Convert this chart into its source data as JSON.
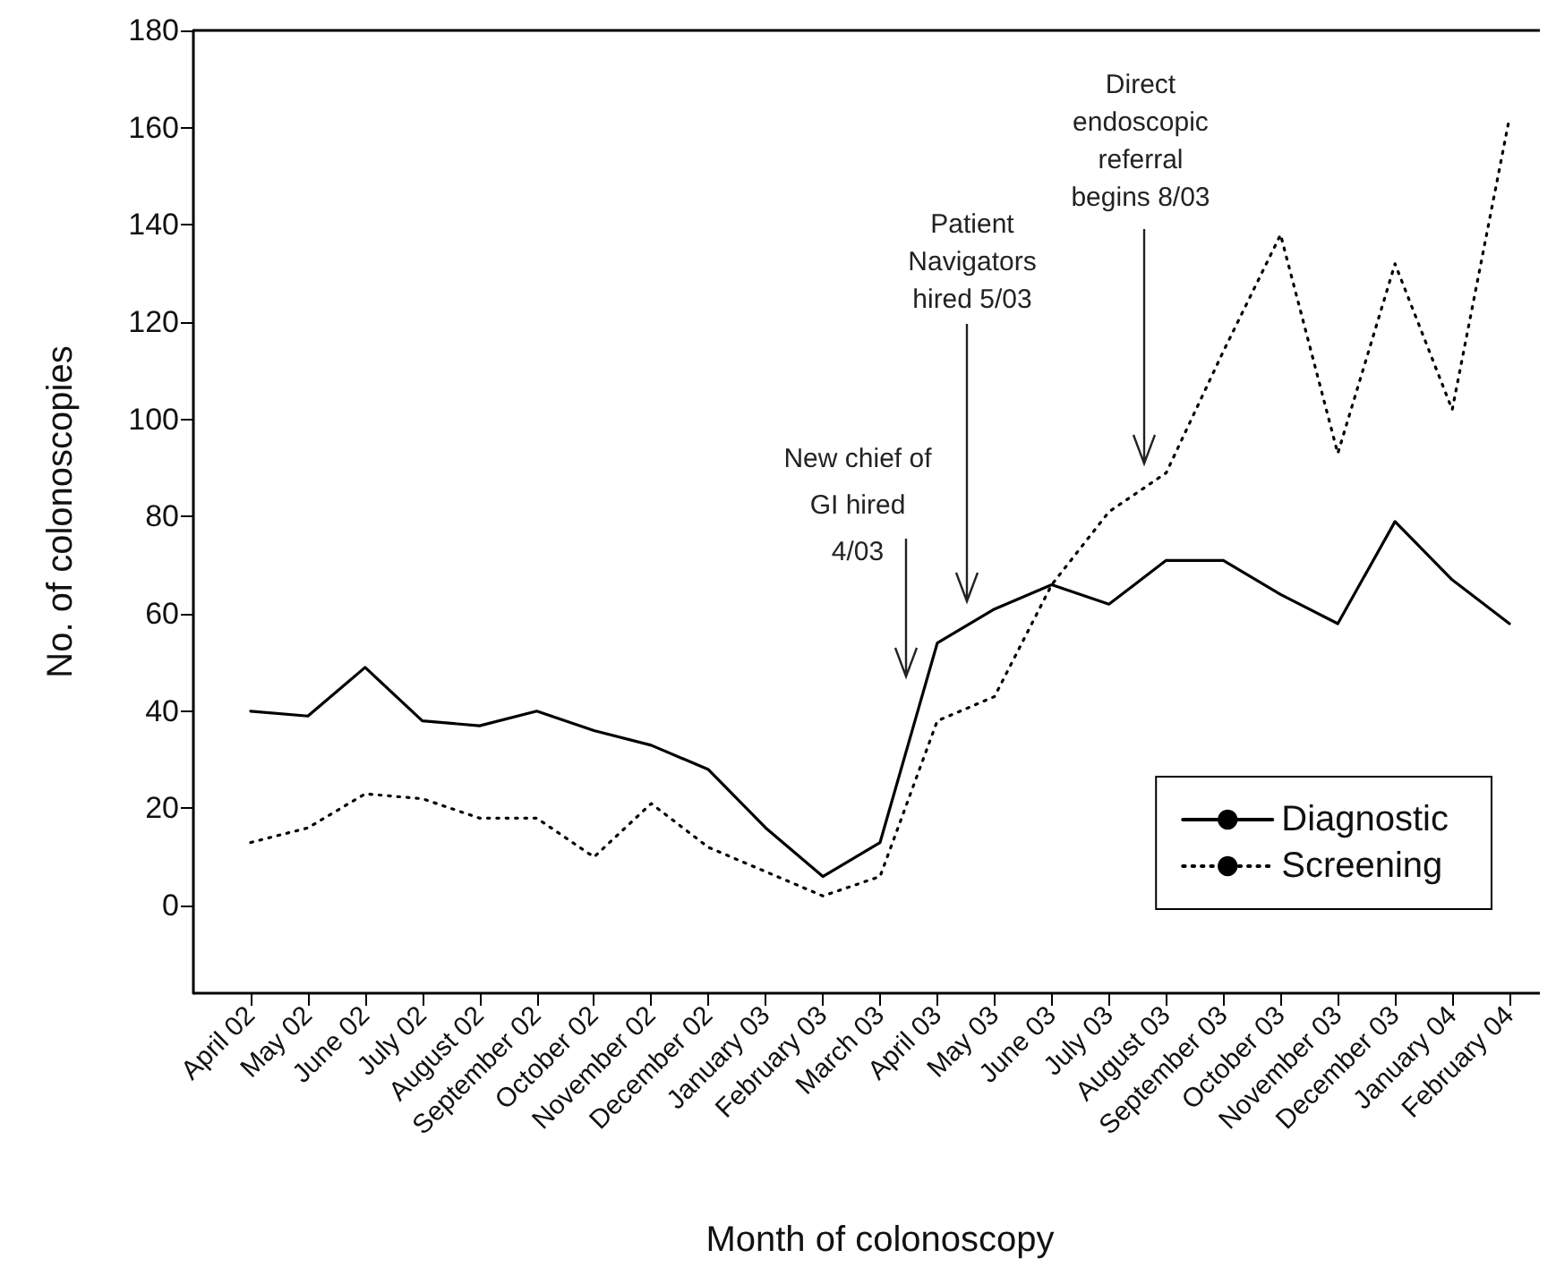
{
  "chart_data": {
    "type": "line",
    "xlabel": "Month of colonoscopy",
    "ylabel": "No. of colonoscopies",
    "categories": [
      "April 02",
      "May 02",
      "June 02",
      "July 02",
      "August 02",
      "September 02",
      "October 02",
      "November 02",
      "December 02",
      "January 03",
      "February 03",
      "March 03",
      "April 03",
      "May 03",
      "June 03",
      "July 03",
      "August 03",
      "September 03",
      "October 03",
      "November 03",
      "December 03",
      "January 04",
      "February 04"
    ],
    "series": [
      {
        "name": "Diagnostic",
        "color": "#000000",
        "line_style": "solid",
        "values": [
          40,
          39,
          49,
          38,
          37,
          40,
          36,
          33,
          28,
          16,
          6,
          13,
          54,
          61,
          66,
          62,
          71,
          71,
          64,
          58,
          79,
          67,
          58
        ]
      },
      {
        "name": "Screening",
        "color": "#000000",
        "line_style": "dotted",
        "values": [
          13,
          16,
          23,
          22,
          18,
          18,
          10,
          21,
          12,
          7,
          2,
          6,
          38,
          43,
          66,
          81,
          89,
          114,
          138,
          93,
          132,
          102,
          162
        ]
      }
    ],
    "ylim": [
      -18,
      180
    ],
    "yticks": [
      0,
      20,
      40,
      60,
      80,
      100,
      120,
      140,
      160,
      180
    ],
    "grid": false,
    "legend": "bottom right",
    "marker": "none",
    "annotations": [
      "New chief of GI hired 4/03",
      "Patient Navigators hired 5/03",
      "Direct endoscopic referral begins 8/03"
    ]
  }
}
